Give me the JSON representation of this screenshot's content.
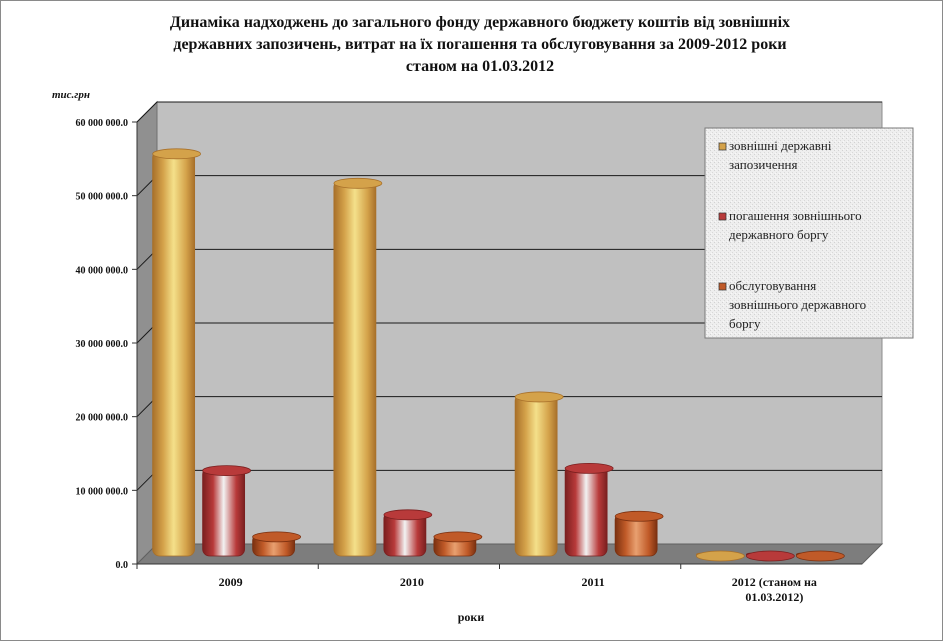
{
  "chart_data": {
    "type": "bar",
    "title_lines": [
      "Динаміка надходжень до загального фонду державного бюджету коштів від зовнішніх",
      "державних запозичень, витрат на їх погашення та обслуговування за 2009-2012 роки",
      "станом на 01.03.2012"
    ],
    "ylabel": "тис.грн",
    "xlabel": "роки",
    "ylim": [
      0,
      60000000
    ],
    "yticks": [
      "0.0",
      "10 000 000.0",
      "20 000 000.0",
      "30 000 000.0",
      "40 000 000.0",
      "50 000 000.0",
      "60 000 000.0"
    ],
    "categories": [
      [
        "2009"
      ],
      [
        "2010"
      ],
      [
        "2011"
      ],
      [
        "2012  (станом на",
        "01.03.2012)"
      ]
    ],
    "series": [
      {
        "name": "зовнішні державні запозичення",
        "legend_lines": [
          "зовнішні державні",
          "запозичення"
        ],
        "values": [
          55000000,
          51000000,
          22000000,
          100000
        ],
        "color": "#d4a24a",
        "light": "#f4e08a",
        "dark": "#a8702a"
      },
      {
        "name": "погашення зовнішнього державного боргу",
        "legend_lines": [
          "погашення зовнішнього",
          "державного боргу"
        ],
        "values": [
          12000000,
          6000000,
          12300000,
          300000
        ],
        "color": "#b83a3a",
        "light": "#f2f2f2",
        "dark": "#7a1f1f"
      },
      {
        "name": "обслуговування зовнішнього державного боргу",
        "legend_lines": [
          "обслуговування",
          "зовнішнього державного",
          "боргу"
        ],
        "values": [
          3000000,
          3000000,
          5800000,
          400000
        ],
        "color": "#c05a28",
        "light": "#e8a070",
        "dark": "#7a3010"
      }
    ],
    "grid": true,
    "legend_position": "top-right"
  }
}
